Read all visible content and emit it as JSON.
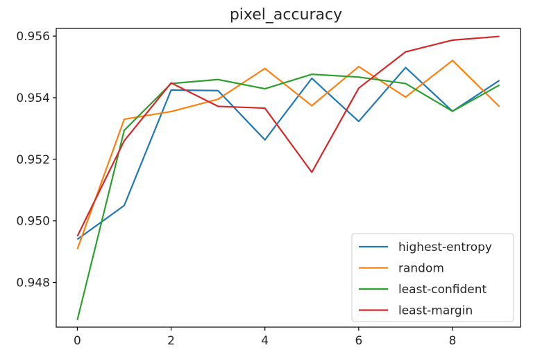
{
  "chart_data": {
    "type": "line",
    "title": "pixel_accuracy",
    "xlabel": "",
    "ylabel": "",
    "x": [
      0,
      1,
      2,
      3,
      4,
      5,
      6,
      7,
      8,
      9
    ],
    "xlim": [
      -0.45,
      9.45
    ],
    "ylim": [
      0.94655,
      0.95625
    ],
    "xticks": [
      0,
      2,
      4,
      6,
      8
    ],
    "xtick_labels": [
      "0",
      "2",
      "4",
      "6",
      "8"
    ],
    "yticks": [
      0.948,
      0.95,
      0.952,
      0.954,
      0.956
    ],
    "ytick_labels": [
      "0.948",
      "0.950",
      "0.952",
      "0.954",
      "0.956"
    ],
    "grid": false,
    "legend_position": "bottom-right",
    "series": [
      {
        "name": "highest-entropy",
        "color": "#1f77b4",
        "values": [
          0.9494,
          0.9505,
          0.95425,
          0.95423,
          0.95263,
          0.95463,
          0.95323,
          0.95498,
          0.95356,
          0.95456
        ]
      },
      {
        "name": "random",
        "color": "#ff7f0e",
        "values": [
          0.94908,
          0.9533,
          0.95355,
          0.95395,
          0.95495,
          0.95374,
          0.95501,
          0.95402,
          0.95521,
          0.95371
        ]
      },
      {
        "name": "least-confident",
        "color": "#2ca02c",
        "values": [
          0.94678,
          0.95294,
          0.95446,
          0.95459,
          0.95429,
          0.95476,
          0.95467,
          0.95446,
          0.95356,
          0.95441
        ]
      },
      {
        "name": "least-margin",
        "color": "#d62728",
        "values": [
          0.9495,
          0.9526,
          0.95448,
          0.95372,
          0.95366,
          0.95158,
          0.95431,
          0.95549,
          0.95587,
          0.95599
        ]
      }
    ]
  }
}
